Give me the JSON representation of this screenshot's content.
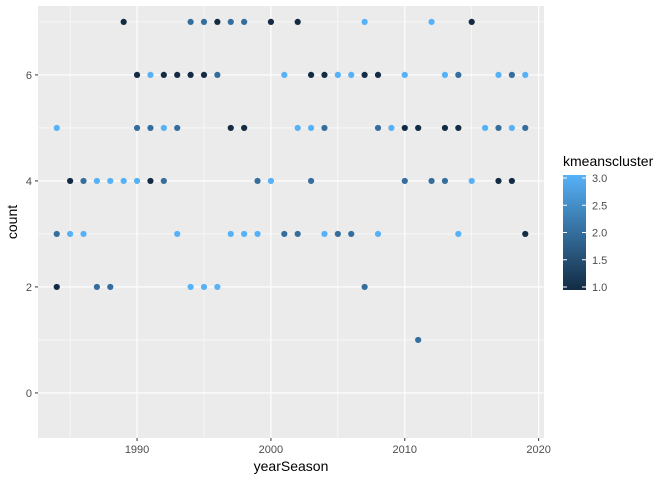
{
  "chart_data": {
    "type": "scatter",
    "xlabel": "yearSeason",
    "ylabel": "count",
    "xlim": [
      1982.6,
      2020.4
    ],
    "ylim": [
      -0.85,
      7.3
    ],
    "x_ticks": [
      1990,
      2000,
      2010,
      2020
    ],
    "y_ticks": [
      0,
      2,
      4,
      6
    ],
    "grid": true,
    "legend": {
      "title": "kmeanscluster",
      "placement": "right",
      "type": "colorbar",
      "range": [
        1.0,
        3.0
      ],
      "ticks": [
        "1.0",
        "1.5",
        "2.0",
        "2.5",
        "3.0"
      ]
    },
    "color_scale": {
      "low": "#132B43",
      "high": "#56B1F7"
    },
    "points": [
      {
        "x": 1984,
        "y": 5,
        "c": 3
      },
      {
        "x": 1984,
        "y": 3,
        "c": 2
      },
      {
        "x": 1984,
        "y": 2,
        "c": 1
      },
      {
        "x": 1985,
        "y": 4,
        "c": 1
      },
      {
        "x": 1985,
        "y": 3,
        "c": 3
      },
      {
        "x": 1986,
        "y": 4,
        "c": 2
      },
      {
        "x": 1986,
        "y": 3,
        "c": 3
      },
      {
        "x": 1987,
        "y": 4,
        "c": 3
      },
      {
        "x": 1987,
        "y": 2,
        "c": 2
      },
      {
        "x": 1988,
        "y": 4,
        "c": 3
      },
      {
        "x": 1988,
        "y": 2,
        "c": 2
      },
      {
        "x": 1989,
        "y": 7,
        "c": 1
      },
      {
        "x": 1989,
        "y": 4,
        "c": 3
      },
      {
        "x": 1990,
        "y": 6,
        "c": 1
      },
      {
        "x": 1990,
        "y": 5,
        "c": 2
      },
      {
        "x": 1990,
        "y": 4,
        "c": 3
      },
      {
        "x": 1991,
        "y": 6,
        "c": 3
      },
      {
        "x": 1991,
        "y": 5,
        "c": 2
      },
      {
        "x": 1991,
        "y": 4,
        "c": 1
      },
      {
        "x": 1992,
        "y": 6,
        "c": 1
      },
      {
        "x": 1992,
        "y": 5,
        "c": 3
      },
      {
        "x": 1992,
        "y": 4,
        "c": 2
      },
      {
        "x": 1993,
        "y": 6,
        "c": 1
      },
      {
        "x": 1993,
        "y": 5,
        "c": 2
      },
      {
        "x": 1993,
        "y": 3,
        "c": 3
      },
      {
        "x": 1994,
        "y": 7,
        "c": 2
      },
      {
        "x": 1994,
        "y": 6,
        "c": 1
      },
      {
        "x": 1994,
        "y": 2,
        "c": 3
      },
      {
        "x": 1995,
        "y": 7,
        "c": 2
      },
      {
        "x": 1995,
        "y": 6,
        "c": 1
      },
      {
        "x": 1995,
        "y": 2,
        "c": 3
      },
      {
        "x": 1996,
        "y": 7,
        "c": 1
      },
      {
        "x": 1996,
        "y": 6,
        "c": 2
      },
      {
        "x": 1996,
        "y": 2,
        "c": 3
      },
      {
        "x": 1997,
        "y": 7,
        "c": 2
      },
      {
        "x": 1997,
        "y": 5,
        "c": 1
      },
      {
        "x": 1997,
        "y": 3,
        "c": 3
      },
      {
        "x": 1998,
        "y": 7,
        "c": 2
      },
      {
        "x": 1998,
        "y": 5,
        "c": 1
      },
      {
        "x": 1998,
        "y": 3,
        "c": 3
      },
      {
        "x": 1999,
        "y": 4,
        "c": 2
      },
      {
        "x": 1999,
        "y": 3,
        "c": 3
      },
      {
        "x": 2000,
        "y": 7,
        "c": 1
      },
      {
        "x": 2000,
        "y": 4,
        "c": 3
      },
      {
        "x": 2001,
        "y": 6,
        "c": 3
      },
      {
        "x": 2001,
        "y": 3,
        "c": 2
      },
      {
        "x": 2002,
        "y": 7,
        "c": 1
      },
      {
        "x": 2002,
        "y": 5,
        "c": 3
      },
      {
        "x": 2002,
        "y": 3,
        "c": 2
      },
      {
        "x": 2003,
        "y": 6,
        "c": 1
      },
      {
        "x": 2003,
        "y": 5,
        "c": 3
      },
      {
        "x": 2003,
        "y": 4,
        "c": 2
      },
      {
        "x": 2004,
        "y": 6,
        "c": 1
      },
      {
        "x": 2004,
        "y": 5,
        "c": 2
      },
      {
        "x": 2004,
        "y": 3,
        "c": 3
      },
      {
        "x": 2005,
        "y": 6,
        "c": 3
      },
      {
        "x": 2005,
        "y": 3,
        "c": 2
      },
      {
        "x": 2006,
        "y": 6,
        "c": 3
      },
      {
        "x": 2006,
        "y": 3,
        "c": 2
      },
      {
        "x": 2007,
        "y": 7,
        "c": 3
      },
      {
        "x": 2007,
        "y": 6,
        "c": 1
      },
      {
        "x": 2007,
        "y": 2,
        "c": 2
      },
      {
        "x": 2008,
        "y": 6,
        "c": 1
      },
      {
        "x": 2008,
        "y": 5,
        "c": 2
      },
      {
        "x": 2008,
        "y": 3,
        "c": 3
      },
      {
        "x": 2009,
        "y": 5,
        "c": 3
      },
      {
        "x": 2010,
        "y": 6,
        "c": 3
      },
      {
        "x": 2010,
        "y": 5,
        "c": 1
      },
      {
        "x": 2010,
        "y": 4,
        "c": 2
      },
      {
        "x": 2011,
        "y": 5,
        "c": 1
      },
      {
        "x": 2011,
        "y": 1,
        "c": 2
      },
      {
        "x": 2012,
        "y": 7,
        "c": 3
      },
      {
        "x": 2012,
        "y": 4,
        "c": 2
      },
      {
        "x": 2013,
        "y": 6,
        "c": 3
      },
      {
        "x": 2013,
        "y": 5,
        "c": 1
      },
      {
        "x": 2013,
        "y": 4,
        "c": 2
      },
      {
        "x": 2014,
        "y": 6,
        "c": 2
      },
      {
        "x": 2014,
        "y": 5,
        "c": 1
      },
      {
        "x": 2014,
        "y": 3,
        "c": 3
      },
      {
        "x": 2015,
        "y": 7,
        "c": 1
      },
      {
        "x": 2015,
        "y": 4,
        "c": 3
      },
      {
        "x": 2016,
        "y": 5,
        "c": 3
      },
      {
        "x": 2017,
        "y": 6,
        "c": 3
      },
      {
        "x": 2017,
        "y": 5,
        "c": 2
      },
      {
        "x": 2017,
        "y": 4,
        "c": 1
      },
      {
        "x": 2018,
        "y": 6,
        "c": 2
      },
      {
        "x": 2018,
        "y": 5,
        "c": 3
      },
      {
        "x": 2018,
        "y": 4,
        "c": 1
      },
      {
        "x": 2019,
        "y": 6,
        "c": 3
      },
      {
        "x": 2019,
        "y": 5,
        "c": 2
      },
      {
        "x": 2019,
        "y": 3,
        "c": 1
      }
    ]
  }
}
